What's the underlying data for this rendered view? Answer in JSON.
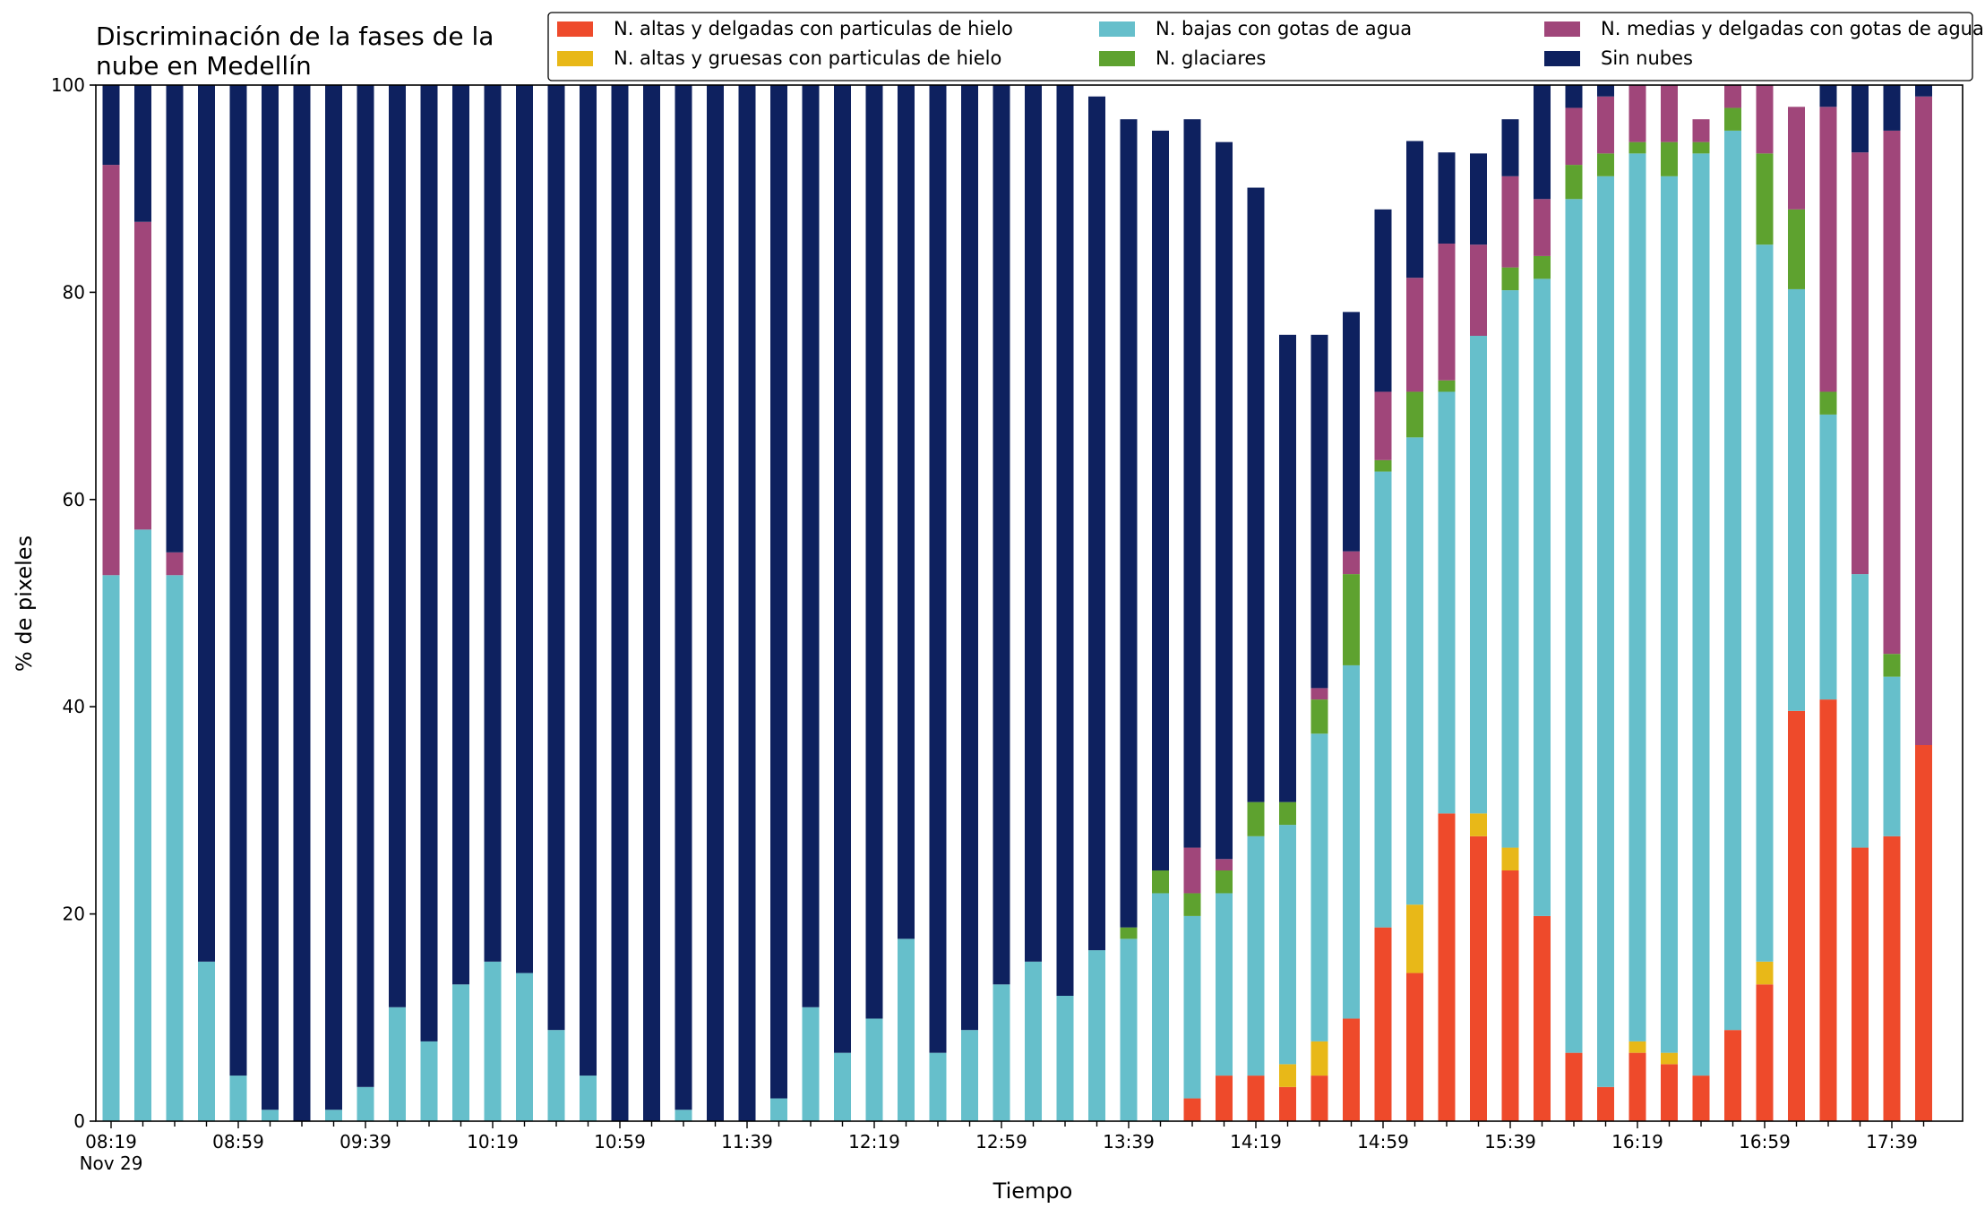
{
  "chart_data": {
    "type": "bar",
    "stacked": true,
    "title_line1": "Discriminación de la fases de la",
    "title_line2": "nube en Medellín",
    "xlabel": "Tiempo",
    "ylabel": "% de pixeles",
    "ylim": [
      0,
      100
    ],
    "yticks": [
      "0",
      "20",
      "40",
      "60",
      "80",
      "100"
    ],
    "xtick_labels": [
      "08:19",
      "08:59",
      "09:39",
      "10:19",
      "10:59",
      "11:39",
      "12:19",
      "12:59",
      "13:39",
      "14:19",
      "14:59",
      "15:39",
      "16:19",
      "16:59",
      "17:39"
    ],
    "xdate_label": "Nov 29",
    "grid": false,
    "legend_position": "top-right",
    "categories": [
      "08:19",
      "08:29",
      "08:39",
      "08:49",
      "08:59",
      "09:09",
      "09:19",
      "09:29",
      "09:39",
      "09:49",
      "09:59",
      "10:09",
      "10:19",
      "10:29",
      "10:39",
      "10:49",
      "10:59",
      "11:09",
      "11:19",
      "11:29",
      "11:39",
      "11:49",
      "11:59",
      "12:09",
      "12:19",
      "12:29",
      "12:39",
      "12:49",
      "12:59",
      "13:09",
      "13:19",
      "13:29",
      "13:39",
      "13:49",
      "13:59",
      "14:09",
      "14:19",
      "14:29",
      "14:39",
      "14:49",
      "14:59",
      "15:09",
      "15:19",
      "15:29",
      "15:39",
      "15:49",
      "15:59",
      "16:09",
      "16:19",
      "16:29",
      "16:39",
      "16:49",
      "16:59",
      "17:09",
      "17:19",
      "17:29",
      "17:39",
      "17:49"
    ],
    "series": [
      {
        "name": "N. altas y delgadas con particulas de hielo",
        "color": "#ee4a2b",
        "values": [
          0,
          0,
          0,
          0,
          0,
          0,
          0,
          0,
          0,
          0,
          0,
          0,
          0,
          0,
          0,
          0,
          0,
          0,
          0,
          0,
          0,
          0,
          0,
          0,
          0,
          0,
          0,
          0,
          0,
          0,
          0,
          0,
          0,
          0,
          2.2,
          4.4,
          4.4,
          3.3,
          4.4,
          9.9,
          18.7,
          14.3,
          29.7,
          27.5,
          24.2,
          19.8,
          6.6,
          3.3,
          6.6,
          5.5,
          4.4,
          8.8,
          13.2,
          39.6,
          40.7,
          26.4,
          27.5,
          36.3
        ]
      },
      {
        "name": "N. altas y gruesas con particulas de hielo",
        "color": "#e8b818",
        "values": [
          0,
          0,
          0,
          0,
          0,
          0,
          0,
          0,
          0,
          0,
          0,
          0,
          0,
          0,
          0,
          0,
          0,
          0,
          0,
          0,
          0,
          0,
          0,
          0,
          0,
          0,
          0,
          0,
          0,
          0,
          0,
          0,
          0,
          0,
          0,
          0,
          0,
          2.2,
          3.3,
          0,
          0,
          6.6,
          0,
          2.2,
          2.2,
          0,
          0,
          0,
          1.1,
          1.1,
          0,
          0,
          2.2,
          0,
          0,
          0,
          0,
          0
        ]
      },
      {
        "name": "N. bajas con gotas de agua",
        "color": "#66bfcb",
        "values": [
          52.7,
          57.1,
          52.7,
          15.4,
          4.4,
          1.1,
          0,
          1.1,
          3.3,
          11.0,
          7.7,
          13.2,
          15.4,
          14.3,
          8.8,
          4.4,
          0,
          0,
          1.1,
          0,
          0,
          2.2,
          11.0,
          6.6,
          9.9,
          17.6,
          6.6,
          8.8,
          13.2,
          15.4,
          12.1,
          16.5,
          17.6,
          22.0,
          17.6,
          17.6,
          23.1,
          23.1,
          29.7,
          34.1,
          44.0,
          45.1,
          40.7,
          46.1,
          53.8,
          61.5,
          82.4,
          87.9,
          85.7,
          84.6,
          89.0,
          86.8,
          69.2,
          40.7,
          27.5,
          26.4,
          15.4,
          0
        ]
      },
      {
        "name": "N. glaciares",
        "color": "#5ea22f",
        "values": [
          0,
          0,
          0,
          0,
          0,
          0,
          0,
          0,
          0,
          0,
          0,
          0,
          0,
          0,
          0,
          0,
          0,
          0,
          0,
          0,
          0,
          0,
          0,
          0,
          0,
          0,
          0,
          0,
          0,
          0,
          0,
          0,
          1.1,
          2.2,
          2.2,
          2.2,
          3.3,
          2.2,
          3.3,
          8.8,
          1.1,
          4.4,
          1.1,
          0,
          2.2,
          2.2,
          3.3,
          2.2,
          1.1,
          3.3,
          1.1,
          2.2,
          8.8,
          7.7,
          2.2,
          0,
          2.2,
          0
        ]
      },
      {
        "name": "N. medias y delgadas con gotas de agua",
        "color": "#a0467a",
        "values": [
          39.6,
          29.7,
          2.2,
          0,
          0,
          0,
          0,
          0,
          0,
          0,
          0,
          0,
          0,
          0,
          0,
          0,
          0,
          0,
          0,
          0,
          0,
          0,
          0,
          0,
          0,
          0,
          0,
          0,
          0,
          0,
          0,
          0,
          0,
          0,
          4.4,
          1.1,
          0,
          0,
          1.1,
          2.2,
          6.6,
          11.0,
          13.2,
          8.8,
          8.8,
          5.5,
          5.5,
          5.5,
          5.5,
          5.5,
          2.2,
          6.6,
          11.0,
          9.9,
          27.5,
          40.7,
          50.5,
          62.6
        ]
      },
      {
        "name": "Sin nubes",
        "color": "#0e215f",
        "values": [
          7.7,
          13.2,
          45.1,
          84.6,
          95.6,
          98.9,
          100,
          98.9,
          96.7,
          89.0,
          92.3,
          86.8,
          84.6,
          85.7,
          91.2,
          95.6,
          100,
          100,
          98.9,
          100,
          100,
          97.8,
          89.0,
          93.4,
          90.1,
          82.4,
          93.4,
          91.2,
          86.8,
          84.6,
          87.9,
          82.4,
          78.0,
          71.4,
          70.3,
          69.2,
          59.3,
          45.1,
          34.1,
          23.1,
          17.6,
          13.2,
          8.8,
          8.8,
          5.5,
          11.0,
          2.2,
          1.1,
          0,
          0,
          0,
          0,
          0,
          0,
          2.2,
          6.6,
          4.4,
          1.1
        ]
      }
    ]
  }
}
